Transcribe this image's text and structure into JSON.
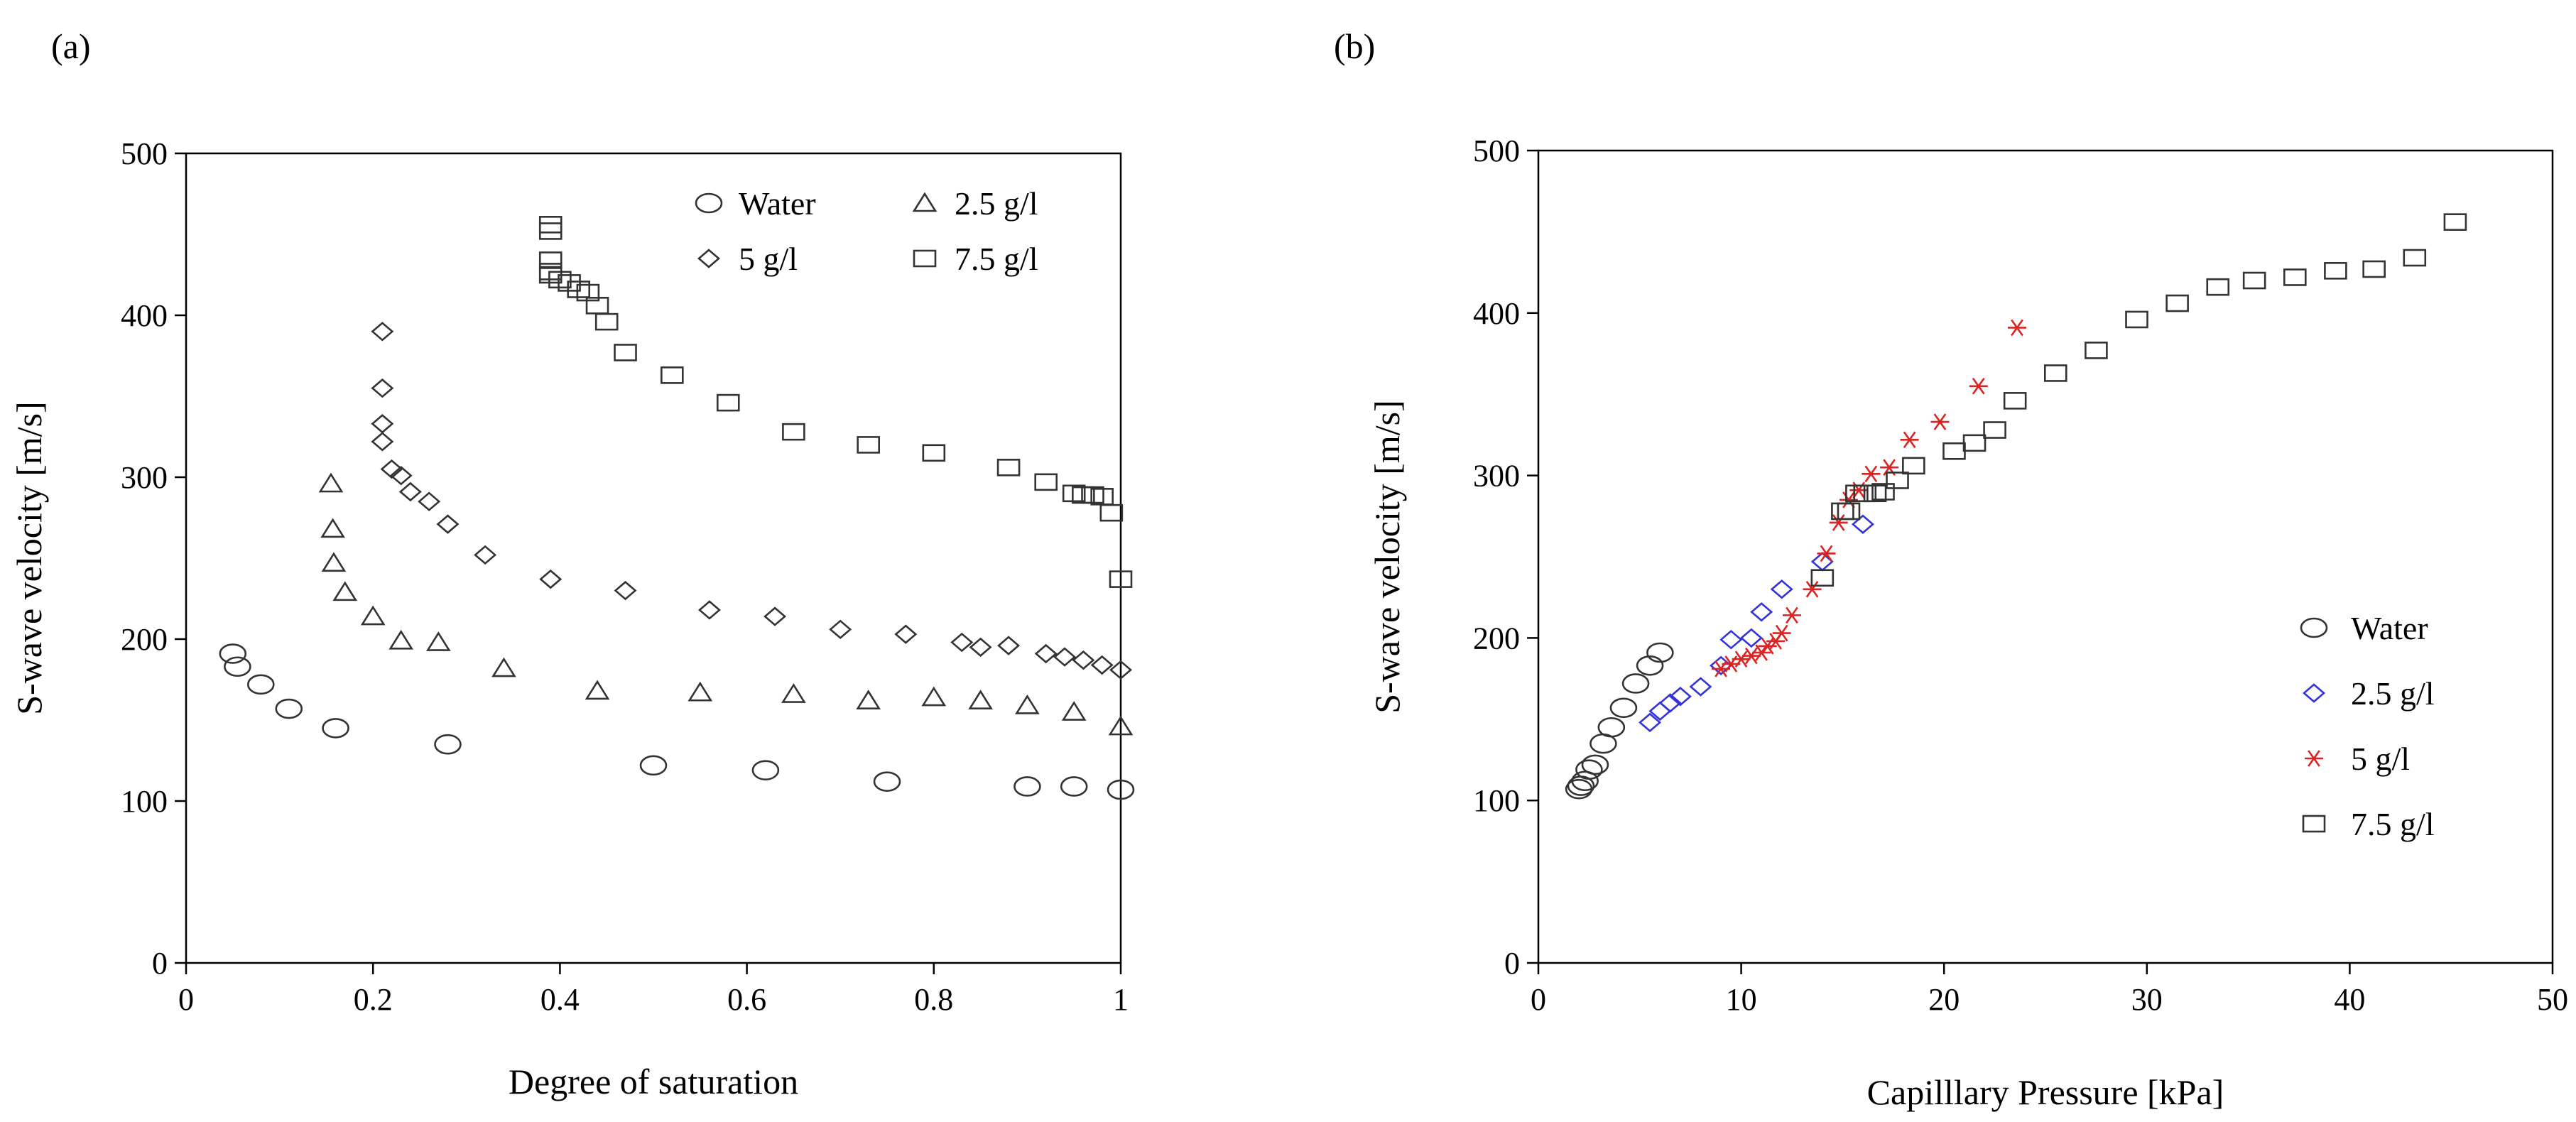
{
  "chart_data": [
    {
      "type": "scatter",
      "panel_label": "(a)",
      "title": "",
      "xlabel": "Degree of saturation",
      "ylabel": "S-wave velocity [m/s]",
      "xlim": [
        0,
        1
      ],
      "ylim": [
        0,
        500
      ],
      "xticks": [
        0,
        0.2,
        0.4,
        0.6,
        0.8,
        1
      ],
      "xtick_labels": [
        "0",
        "0.2",
        "0.4",
        "0.6",
        "0.8",
        "1"
      ],
      "yticks": [
        0,
        100,
        200,
        300,
        400,
        500
      ],
      "ytick_labels": [
        "0",
        "100",
        "200",
        "300",
        "400",
        "500"
      ],
      "legend_position": "top-right",
      "series": [
        {
          "name": "Water",
          "marker": "circle",
          "color": "#333333",
          "x": [
            0.05,
            0.055,
            0.08,
            0.11,
            0.16,
            0.28,
            0.5,
            0.62,
            0.75,
            0.9,
            0.95,
            1.0
          ],
          "y": [
            191,
            183,
            172,
            157,
            145,
            135,
            122,
            119,
            112,
            109,
            109,
            107
          ]
        },
        {
          "name": "2.5 g/l",
          "marker": "triangle",
          "color": "#333333",
          "x": [
            0.155,
            0.157,
            0.158,
            0.17,
            0.2,
            0.23,
            0.27,
            0.34,
            0.44,
            0.55,
            0.65,
            0.73,
            0.8,
            0.85,
            0.9,
            0.95,
            1.0
          ],
          "y": [
            296,
            268,
            247,
            229,
            214,
            199,
            198,
            182,
            168,
            167,
            166,
            162,
            164,
            162,
            159,
            155,
            146
          ]
        },
        {
          "name": "5 g/l",
          "marker": "diamond",
          "color": "#333333",
          "x": [
            0.21,
            0.21,
            0.21,
            0.21,
            0.22,
            0.23,
            0.24,
            0.26,
            0.28,
            0.32,
            0.39,
            0.47,
            0.56,
            0.63,
            0.7,
            0.77,
            0.83,
            0.85,
            0.88,
            0.92,
            0.94,
            0.96,
            0.98,
            1.0
          ],
          "y": [
            390,
            355,
            333,
            322,
            305,
            301,
            291,
            285,
            271,
            252,
            237,
            230,
            218,
            214,
            206,
            203,
            198,
            195,
            196,
            191,
            189,
            187,
            184,
            181
          ]
        },
        {
          "name": "7.5 g/l",
          "marker": "square",
          "color": "#333333",
          "x": [
            0.39,
            0.39,
            0.39,
            0.39,
            0.39,
            0.4,
            0.41,
            0.42,
            0.43,
            0.44,
            0.45,
            0.47,
            0.52,
            0.58,
            0.65,
            0.73,
            0.8,
            0.88,
            0.92,
            0.95,
            0.96,
            0.97,
            0.98,
            0.99,
            1.0
          ],
          "y": [
            456,
            452,
            434,
            427,
            425,
            422,
            420,
            416,
            414,
            406,
            396,
            377,
            363,
            346,
            328,
            320,
            315,
            306,
            297,
            290,
            289,
            289,
            288,
            278,
            237
          ]
        }
      ]
    },
    {
      "type": "scatter",
      "panel_label": "(b)",
      "title": "",
      "xlabel": "Capilllary Pressure [kPa]",
      "ylabel": "S-wave velocity [m/s]",
      "xlim": [
        0,
        50
      ],
      "ylim": [
        0,
        500
      ],
      "xticks": [
        0,
        10,
        20,
        30,
        40,
        50
      ],
      "xtick_labels": [
        "0",
        "10",
        "20",
        "30",
        "40",
        "50"
      ],
      "yticks": [
        0,
        100,
        200,
        300,
        400,
        500
      ],
      "ytick_labels": [
        "0",
        "100",
        "200",
        "300",
        "400",
        "500"
      ],
      "legend_position": "bottom-right",
      "series": [
        {
          "name": "Water",
          "marker": "circle",
          "color": "#333333",
          "x": [
            2.0,
            2.1,
            2.3,
            2.5,
            2.8,
            3.2,
            3.6,
            4.2,
            4.8,
            5.5,
            6.0
          ],
          "y": [
            107,
            109,
            112,
            119,
            122,
            135,
            145,
            157,
            172,
            183,
            191
          ]
        },
        {
          "name": "2.5 g/l",
          "marker": "diamond",
          "color": "#3333dd",
          "x": [
            5.5,
            6.0,
            6.5,
            7.0,
            8.0,
            9.0,
            9.5,
            10.5,
            11.0,
            12.0,
            14.0,
            16.0
          ],
          "y": [
            148,
            155,
            160,
            164,
            170,
            183,
            199,
            200,
            216,
            230,
            247,
            270
          ]
        },
        {
          "name": "5 g/l",
          "marker": "asterisk",
          "color": "#dd2222",
          "x": [
            9.0,
            9.5,
            10.0,
            10.5,
            11.0,
            11.3,
            11.7,
            12.0,
            12.5,
            13.5,
            14.2,
            14.8,
            15.3,
            15.8,
            16.4,
            17.3,
            18.3,
            19.8,
            21.7,
            23.6
          ],
          "y": [
            181,
            184,
            187,
            189,
            191,
            195,
            198,
            203,
            214,
            230,
            252,
            271,
            285,
            291,
            301,
            305,
            322,
            333,
            355,
            391
          ]
        },
        {
          "name": "7.5 g/l",
          "marker": "square",
          "color": "#333333",
          "x": [
            14.0,
            15.0,
            15.3,
            15.7,
            16.1,
            16.6,
            17.0,
            17.7,
            18.5,
            20.5,
            21.5,
            22.5,
            23.5,
            25.5,
            27.5,
            29.5,
            31.5,
            33.5,
            35.3,
            37.3,
            39.3,
            41.2,
            43.2,
            45.2
          ],
          "y": [
            237,
            278,
            278,
            289,
            289,
            289,
            290,
            297,
            306,
            315,
            320,
            328,
            346,
            363,
            377,
            396,
            406,
            416,
            420,
            422,
            426,
            427,
            434,
            456
          ]
        }
      ]
    }
  ]
}
